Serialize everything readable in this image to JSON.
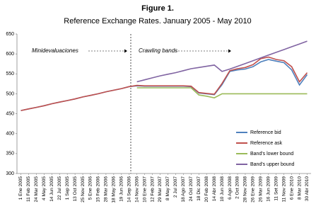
{
  "chart_data": {
    "type": "line",
    "title": "Figure 1.",
    "subtitle": "Reference Exchange Rates. January 2005 - May 2010",
    "annotations": [
      "Minidevaluaciones",
      "Crawling bands"
    ],
    "categories": [
      "1 Ene 2005",
      "11 Feb 2005",
      "24 Mar 2005",
      "4 May 2005",
      "14 Jun 2005",
      "22 Jul 2005",
      "1 Sep 2005",
      "13 Oct 2005",
      "25 Nov 2005",
      "5 Ene 2006",
      "15 Feb 2006",
      "28 Mar 2006",
      "18 May 2006",
      "19 Jun 2006",
      "14 Sep 2006",
      "14 Nov 2006",
      "10 Ene 2007",
      "12 Feb 2007",
      "29 Mar 2007",
      "8 May 2007",
      "2 Jul 2007",
      "18 Ago 2007",
      "24 Oct 2007",
      "18 Dic 2007",
      "20 Feb 2008",
      "14 Abr 2008",
      "10 Jun 2008",
      "6 Ago 2008",
      "2 Oct 2008",
      "28 Nov 2008",
      "26 Ene 2009",
      "26 Mar 2009",
      "16 Jun 2009",
      "11 Set 2009",
      "11 Nov 2009",
      "6 Ene 2010",
      "8 Mar 2010",
      "30 Abr 2010"
    ],
    "series": [
      {
        "name": "Reference bid",
        "color": "#4f81bd",
        "values": [
          458,
          462,
          466,
          470,
          475,
          479,
          483,
          487,
          492,
          496,
          500,
          505,
          509,
          513,
          518,
          520,
          519,
          519,
          519,
          519,
          519,
          519,
          518,
          502,
          500,
          498,
          523,
          556,
          560,
          562,
          568,
          580,
          586,
          582,
          578,
          560,
          522,
          548
        ]
      },
      {
        "name": "Reference ask",
        "color": "#c0504d",
        "values": [
          458,
          462,
          466,
          470,
          475,
          479,
          483,
          487,
          492,
          496,
          500,
          505,
          509,
          513,
          518,
          521,
          520,
          520,
          520,
          520,
          520,
          520,
          519,
          503,
          501,
          499,
          526,
          558,
          563,
          566,
          573,
          588,
          592,
          586,
          583,
          568,
          530,
          553
        ]
      },
      {
        "name": "Band's lower bound",
        "color": "#9bbb59",
        "values": [
          null,
          null,
          null,
          null,
          null,
          null,
          null,
          null,
          null,
          null,
          null,
          null,
          null,
          null,
          null,
          515,
          515,
          515,
          515,
          515,
          515,
          515,
          515,
          497,
          494,
          490,
          500,
          500,
          500,
          500,
          500,
          500,
          500,
          500,
          500,
          500,
          500,
          500
        ]
      },
      {
        "name": "Band's upper bound",
        "color": "#8064a2",
        "values": [
          null,
          null,
          null,
          null,
          null,
          null,
          null,
          null,
          null,
          null,
          null,
          null,
          null,
          null,
          null,
          530,
          535,
          540,
          545,
          549,
          553,
          558,
          563,
          566,
          569,
          572,
          556,
          562,
          569,
          576,
          583,
          590,
          597,
          604,
          611,
          618,
          625,
          632
        ]
      }
    ],
    "ylim": [
      300,
      650
    ],
    "yticks": [
      300,
      350,
      400,
      450,
      500,
      550,
      600,
      650
    ],
    "grid": false,
    "legend": "lower right"
  }
}
